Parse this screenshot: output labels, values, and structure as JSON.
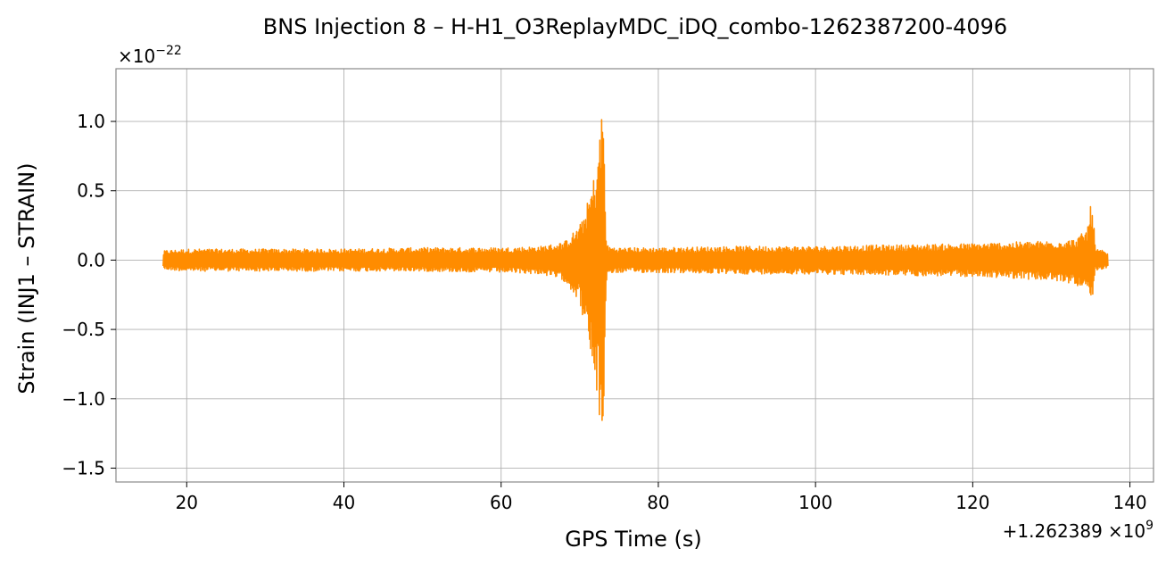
{
  "chart_data": {
    "type": "line",
    "title": "BNS Injection 8 – H-H1_O3ReplayMDC_iDQ_combo-1262387200-4096",
    "xlabel": "GPS Time (s)",
    "ylabel": "Strain (INJ1 – STRAIN)",
    "x_offset_text": "+1.262389",
    "x_offset_mult": "×10",
    "x_offset_exp": "9",
    "y_scale_text": "×10",
    "y_scale_exp": "−22",
    "xlim": [
      11,
      143
    ],
    "ylim": [
      -1.6,
      1.38
    ],
    "x_ticks": [
      20,
      40,
      60,
      80,
      100,
      120,
      140
    ],
    "x_tick_labels": [
      "20",
      "40",
      "60",
      "80",
      "100",
      "120",
      "140"
    ],
    "y_ticks": [
      -1.5,
      -1.0,
      -0.5,
      0.0,
      0.5,
      1.0
    ],
    "y_tick_labels": [
      "−1.5",
      "−1.0",
      "−0.5",
      "0.0",
      "0.5",
      "1.0"
    ],
    "grid": true,
    "line_color": "#ff8c00",
    "series": [
      {
        "color": "#ff8c00",
        "x": [
          17.0,
          17.2,
          20,
          30,
          40,
          50,
          60,
          65,
          68,
          70,
          71,
          72,
          72.6,
          73.0,
          73.2,
          73.4,
          73.6,
          75,
          80,
          90,
          100,
          110,
          120,
          125,
          130,
          133,
          134.5,
          135.2,
          135.6,
          136.5,
          137.2
        ],
        "envelope_upper": [
          0.05,
          0.07,
          0.08,
          0.08,
          0.08,
          0.09,
          0.09,
          0.1,
          0.13,
          0.25,
          0.42,
          0.65,
          0.95,
          1.24,
          0.5,
          0.15,
          0.1,
          0.09,
          0.09,
          0.1,
          0.1,
          0.11,
          0.12,
          0.13,
          0.14,
          0.15,
          0.22,
          0.46,
          0.08,
          0.07,
          0.05
        ],
        "envelope_lower": [
          -0.05,
          -0.07,
          -0.08,
          -0.08,
          -0.08,
          -0.08,
          -0.09,
          -0.1,
          -0.15,
          -0.3,
          -0.6,
          -0.95,
          -1.2,
          -1.46,
          -0.6,
          -0.15,
          -0.1,
          -0.09,
          -0.09,
          -0.1,
          -0.1,
          -0.11,
          -0.12,
          -0.13,
          -0.15,
          -0.17,
          -0.24,
          -0.34,
          -0.08,
          -0.07,
          -0.05
        ]
      }
    ]
  }
}
